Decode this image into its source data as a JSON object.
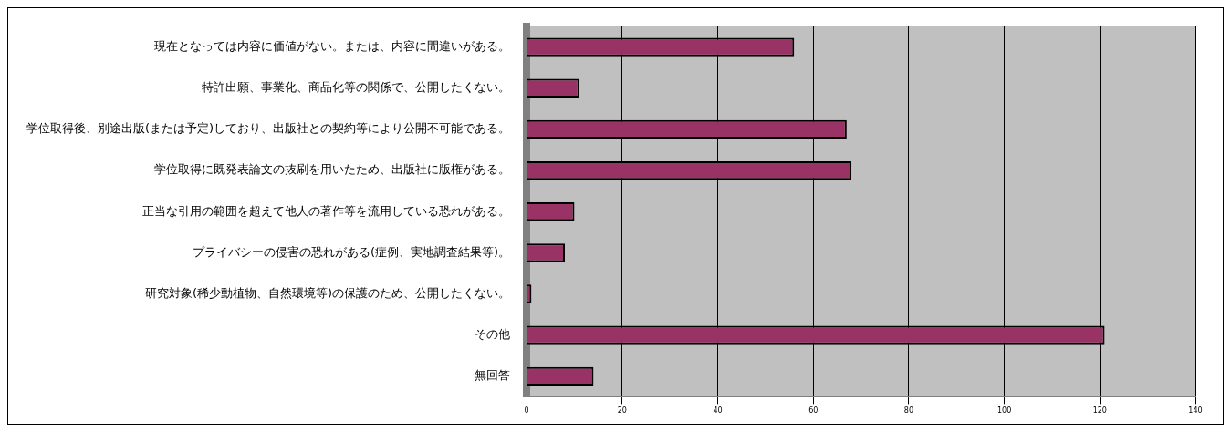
{
  "chart_data": {
    "type": "bar",
    "orientation": "horizontal",
    "categories": [
      "現在となっては内容に価値がない。または、内容に間違いがある。",
      "特許出願、事業化、商品化等の関係で、公開したくない。",
      "学位取得後、別途出版(または予定)しており、出版社との契約等により公開不可能である。",
      "学位取得に既発表論文の抜刷を用いたため、出版社に版権がある。",
      "正当な引用の範囲を超えて他人の著作等を流用している恐れがある。",
      "プライバシーの侵害の恐れがある(症例、実地調査結果等)。",
      "研究対象(稀少動植物、自然環境等)の保護のため、公開したくない。",
      "その他",
      "無回答"
    ],
    "values": [
      56,
      11,
      67,
      68,
      10,
      8,
      1,
      121,
      14
    ],
    "color": "#993366",
    "xlim": [
      0,
      140
    ],
    "xticks": [
      0,
      20,
      40,
      60,
      80,
      100,
      120,
      140
    ],
    "grid": "x",
    "legend": false
  }
}
